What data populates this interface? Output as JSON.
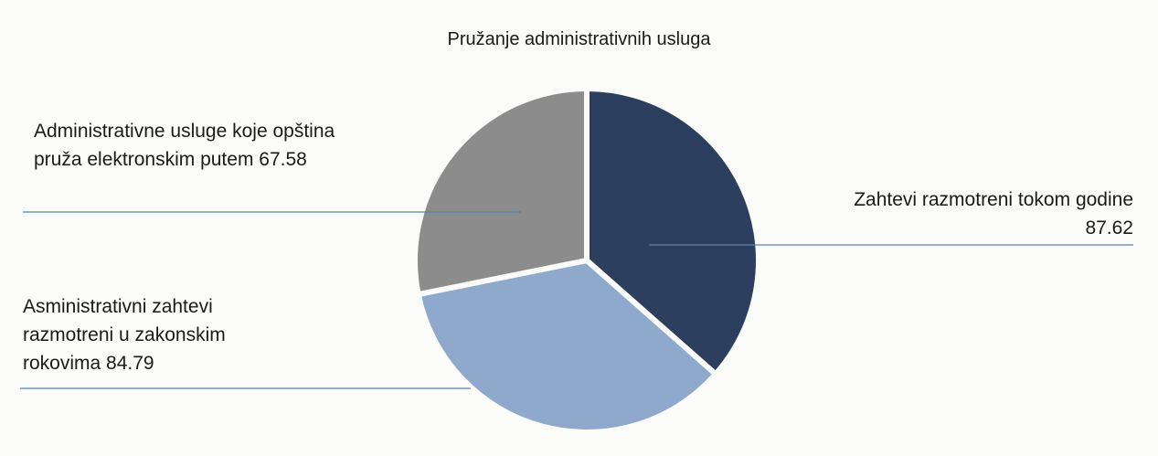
{
  "chart_data": {
    "type": "pie",
    "title": "Pružanje administrativnih usluga",
    "categories": [
      "Zahtevi razmotreni tokom godine",
      "Asministrativni zahtevi razmotreni u zakonskim rokovima",
      "Administrativne usluge koje opština pruža elektronskim putem"
    ],
    "values": [
      87.62,
      84.79,
      67.58
    ],
    "colors": [
      "#2c3f5e",
      "#8fa9cd",
      "#8c8c8c"
    ]
  }
}
